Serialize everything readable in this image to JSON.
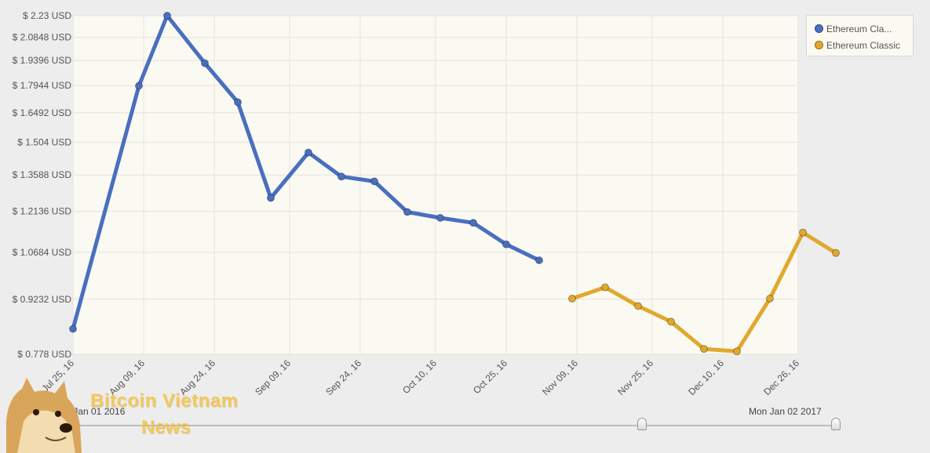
{
  "chart_data": {
    "type": "line",
    "y_ticks": [
      "$ 2.23 USD",
      "$ 2.0848 USD",
      "$ 1.9396 USD",
      "$ 1.7944 USD",
      "$ 1.6492 USD",
      "$ 1.504 USD",
      "$ 1.3588 USD",
      "$ 1.2136 USD",
      "$ 1.0684 USD",
      "$ 0.9232 USD",
      "$ 0.778 USD"
    ],
    "y_tick_values": [
      2.23,
      2.0848,
      1.9396,
      1.7944,
      1.6492,
      1.504,
      1.3588,
      1.2136,
      1.0684,
      0.9232,
      0.778
    ],
    "y_scale": "log",
    "ylim": [
      0.778,
      2.23
    ],
    "x_ticks": [
      "Jul 25, 16",
      "Aug 09, 16",
      "Aug 24, 16",
      "Sep 09, 16",
      "Sep 24, 16",
      "Oct 10, 16",
      "Oct 25, 16",
      "Nov 09, 16",
      "Nov 25, 16",
      "Dec 10, 16",
      "Dec 26, 16"
    ],
    "x_tick_dates": [
      "2016-07-25",
      "2016-08-09",
      "2016-08-24",
      "2016-09-09",
      "2016-09-24",
      "2016-10-10",
      "2016-10-25",
      "2016-11-09",
      "2016-11-25",
      "2016-12-10",
      "2016-12-26"
    ],
    "xlim": [
      "2016-07-25",
      "2016-12-26"
    ],
    "grid": true,
    "legend_position": "top-right",
    "series": [
      {
        "name": "Ethereum Cla...",
        "color": "#4a6fbf",
        "points": [
          {
            "x": "2016-07-25",
            "y": 0.842
          },
          {
            "x": "2016-08-08",
            "y": 1.793
          },
          {
            "x": "2016-08-14",
            "y": 2.23
          },
          {
            "x": "2016-08-22",
            "y": 1.924
          },
          {
            "x": "2016-08-29",
            "y": 1.704
          },
          {
            "x": "2016-09-05",
            "y": 1.265
          },
          {
            "x": "2016-09-13",
            "y": 1.457
          },
          {
            "x": "2016-09-20",
            "y": 1.352
          },
          {
            "x": "2016-09-27",
            "y": 1.332
          },
          {
            "x": "2016-10-04",
            "y": 1.211
          },
          {
            "x": "2016-10-11",
            "y": 1.189
          },
          {
            "x": "2016-10-18",
            "y": 1.171
          },
          {
            "x": "2016-10-25",
            "y": 1.095
          },
          {
            "x": "2016-11-01",
            "y": 1.042
          }
        ]
      },
      {
        "name": "Ethereum Classic",
        "color": "#e0a82e",
        "points": [
          {
            "x": "2016-11-08",
            "y": 0.925
          },
          {
            "x": "2016-11-15",
            "y": 0.958
          },
          {
            "x": "2016-11-22",
            "y": 0.904
          },
          {
            "x": "2016-11-29",
            "y": 0.861
          },
          {
            "x": "2016-12-06",
            "y": 0.791
          },
          {
            "x": "2016-12-13",
            "y": 0.785
          },
          {
            "x": "2016-12-20",
            "y": 0.925
          },
          {
            "x": "2016-12-27",
            "y": 1.136
          },
          {
            "x": "2017-01-03",
            "y": 1.066
          }
        ]
      }
    ]
  },
  "range_selector": {
    "start_label": "Fri Jan 01 2016",
    "end_label": "Mon Jan 02 2017"
  },
  "watermark": {
    "line1": "Bitcoin Vietnam",
    "line2": "News"
  },
  "colors": {
    "plot_background": "#fbfaf2",
    "grid": "#e3e3dc",
    "page_background": "#ededed"
  }
}
